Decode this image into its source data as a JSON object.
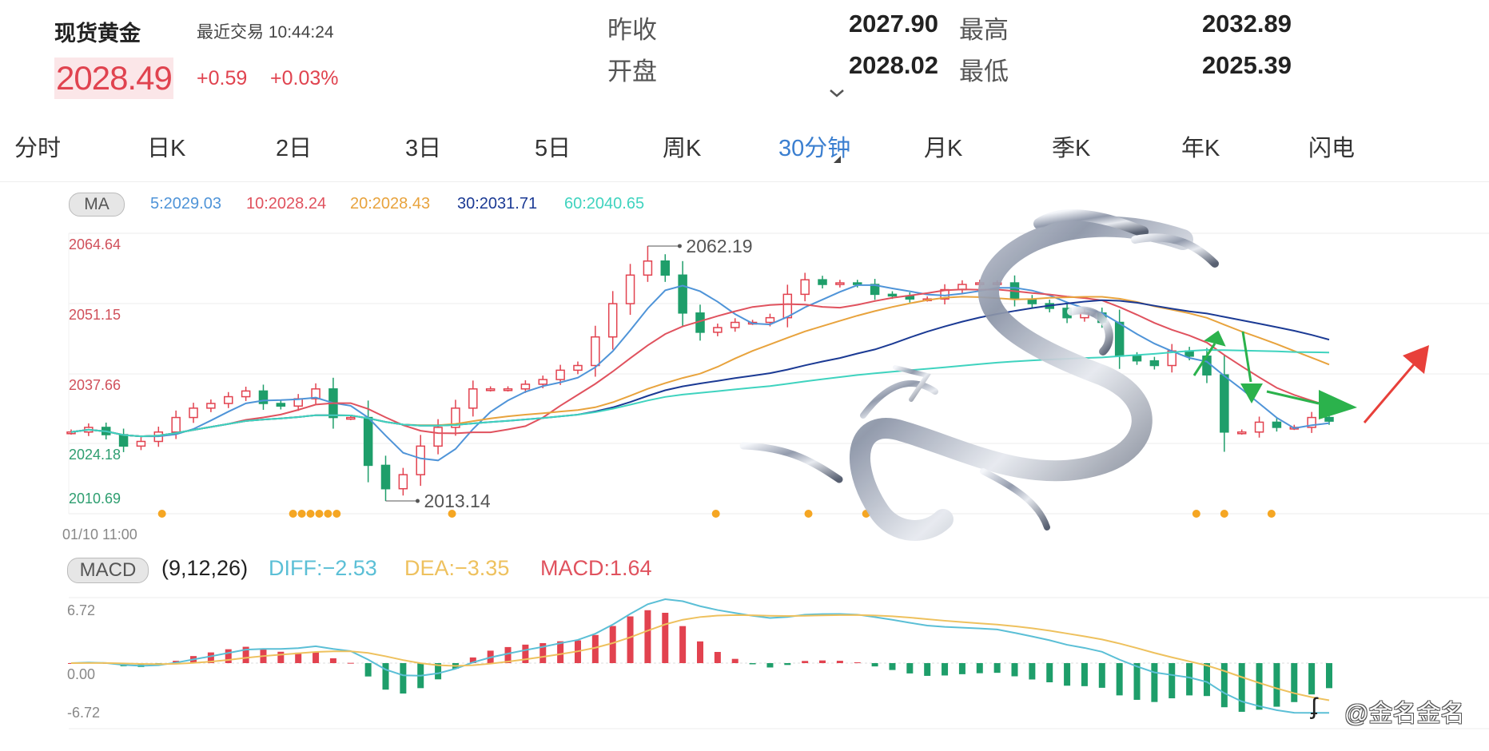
{
  "header": {
    "title": "现货黄金",
    "last_trade": "最近交易 10:44:24",
    "price": "2028.49",
    "change": "+0.59",
    "change_pct": "+0.03%",
    "stats": [
      {
        "label": "昨收",
        "value": "2027.90"
      },
      {
        "label": "最高",
        "value": "2032.89"
      },
      {
        "label": "开盘",
        "value": "2028.02"
      },
      {
        "label": "最低",
        "value": "2025.39"
      }
    ]
  },
  "tabs": [
    {
      "label": "分时"
    },
    {
      "label": "日K"
    },
    {
      "label": "2日"
    },
    {
      "label": "3日"
    },
    {
      "label": "5日"
    },
    {
      "label": "周K"
    },
    {
      "label": "30分钟",
      "active": true
    },
    {
      "label": "月K"
    },
    {
      "label": "季K"
    },
    {
      "label": "年K"
    },
    {
      "label": "闪电"
    }
  ],
  "ma_legend": {
    "label": "MA",
    "items": [
      {
        "text": "5:2029.03",
        "color": "#4f94d8"
      },
      {
        "text": "10:2028.24",
        "color": "#e0525e"
      },
      {
        "text": "20:2028.43",
        "color": "#e8a33d"
      },
      {
        "text": "30:2031.71",
        "color": "#1b3a94"
      },
      {
        "text": "60:2040.65",
        "color": "#3fd3bf"
      }
    ]
  },
  "macd_legend": {
    "label": "MACD",
    "params": "(9,12,26)",
    "diff": "DIFF:−2.53",
    "dea": "DEA:−3.35",
    "macd": "MACD:1.64",
    "diff_color": "#5bbfd6",
    "dea_color": "#eec15e",
    "macd_color": "#e0525e"
  },
  "chart_data": [
    {
      "type": "candlestick",
      "y_ticks": [
        "2064.64",
        "2051.15",
        "2037.66",
        "2024.18",
        "2010.69"
      ],
      "ylim": [
        2010.69,
        2064.64
      ],
      "x_start_label": "01/10 11:00",
      "up_color": "#e2424f",
      "down_color": "#1e9e6a",
      "closes": [
        2026.4,
        2027.3,
        2025.9,
        2023.7,
        2024.6,
        2026.4,
        2029.2,
        2031.0,
        2031.9,
        2033.2,
        2034.3,
        2031.9,
        2031.4,
        2032.8,
        2034.7,
        2029.2,
        2029.2,
        2020.0,
        2015.5,
        2018.2,
        2023.7,
        2027.3,
        2031.0,
        2034.7,
        2034.7,
        2034.7,
        2035.6,
        2036.5,
        2038.3,
        2039.2,
        2044.7,
        2051.1,
        2056.6,
        2059.3,
        2056.6,
        2049.3,
        2045.6,
        2046.5,
        2047.5,
        2047.5,
        2048.4,
        2052.9,
        2055.7,
        2054.8,
        2055.1,
        2054.8,
        2052.9,
        2052.6,
        2052.0,
        2052.0,
        2053.8,
        2054.8,
        2055.1,
        2055.1,
        2052.0,
        2051.1,
        2050.2,
        2048.4,
        2049.3,
        2047.5,
        2041.0,
        2040.1,
        2039.2,
        2042.0,
        2041.0,
        2037.4,
        2026.4,
        2026.4,
        2028.3,
        2027.3,
        2027.3,
        2029.2,
        2028.5
      ],
      "moving_averages": [
        5,
        10,
        20,
        30,
        60
      ],
      "annotations": [
        {
          "label": "2062.19",
          "value": 2062.19,
          "index": 33,
          "kind": "high"
        },
        {
          "label": "2013.14",
          "value": 2013.14,
          "index": 18,
          "kind": "low"
        }
      ],
      "signal_markers": [
        5.2,
        12.7,
        13.2,
        13.7,
        14.2,
        14.7,
        15.2,
        21.8,
        36.9,
        42.2,
        45.5,
        64.4,
        66.0,
        68.7
      ],
      "marker_color": "#f5a623"
    },
    {
      "type": "macd",
      "y_ticks": [
        "6.72",
        "0.00",
        "-6.72"
      ],
      "ylim": [
        -6.72,
        6.72
      ]
    }
  ],
  "watermark": "@金名金名"
}
